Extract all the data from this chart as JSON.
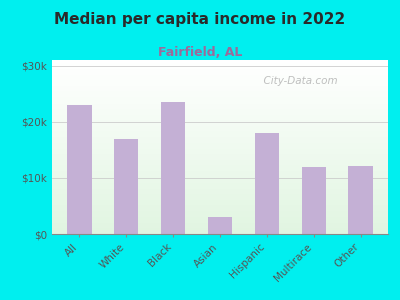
{
  "title": "Median per capita income in 2022",
  "subtitle": "Fairfield, AL",
  "categories": [
    "All",
    "White",
    "Black",
    "Asian",
    "Hispanic",
    "Multirace",
    "Other"
  ],
  "values": [
    23000,
    17000,
    23500,
    3000,
    18000,
    12000,
    12200
  ],
  "bar_color": "#C4B0D5",
  "background_outer": "#00EFEF",
  "title_color": "#2A2A2A",
  "subtitle_color": "#9B6B9B",
  "tick_label_color": "#555555",
  "ylim": [
    0,
    31000
  ],
  "yticks": [
    0,
    10000,
    20000,
    30000
  ],
  "ytick_labels": [
    "$0",
    "$10k",
    "$20k",
    "$30k"
  ],
  "watermark": "  City-Data.com",
  "watermark_color": "#AAAAAA"
}
